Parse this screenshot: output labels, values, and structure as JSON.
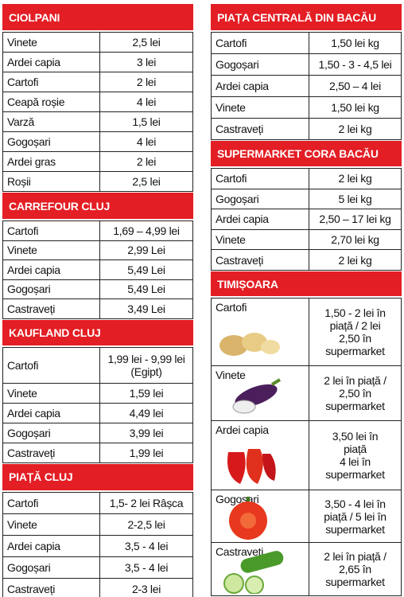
{
  "left": [
    {
      "title": "CIOLPANI",
      "rows": [
        [
          "Vinete",
          "2,5 lei"
        ],
        [
          "Ardei capia",
          "3 lei"
        ],
        [
          "Cartofi",
          "2 lei"
        ],
        [
          "Ceapă roșie",
          "4 lei"
        ],
        [
          "Varză",
          "1,5 lei"
        ],
        [
          "Gogoșari",
          "4 lei"
        ],
        [
          "Ardei gras",
          "2 lei"
        ],
        [
          "Roșii",
          "2,5 lei"
        ]
      ]
    },
    {
      "title": "CARREFOUR CLUJ",
      "rows": [
        [
          "Cartofi",
          "1,69 – 4,99 lei"
        ],
        [
          "Vinete",
          "2,99 Lei"
        ],
        [
          "Ardei capia",
          "5,49 Lei"
        ],
        [
          "Gogoșari",
          "5,49 Lei"
        ],
        [
          "Castraveți",
          "3,49 Lei"
        ]
      ]
    },
    {
      "title": "KAUFLAND CLUJ",
      "rows": [
        [
          "Cartofi",
          "1,99 lei - 9,99 lei (Egipt)"
        ],
        [
          "Vinete",
          "1,59 lei"
        ],
        [
          "Ardei capia",
          "4,49 lei"
        ],
        [
          "Gogoșari",
          "3,99 lei"
        ],
        [
          "Castraveți",
          "1,99 lei"
        ]
      ]
    },
    {
      "title": "PIAȚĂ CLUJ",
      "rows": [
        [
          "Cartofi",
          "1,5- 2 lei Râșca"
        ],
        [
          "Vinete",
          "2-2,5 lei"
        ],
        [
          "Ardei capia",
          "3,5 - 4 lei"
        ],
        [
          "Gogoșari",
          "3,5 - 4 lei"
        ],
        [
          "Castraveți",
          "2-3 lei"
        ]
      ]
    }
  ],
  "right": [
    {
      "title": "PIAȚA CENTRALĂ DIN BACĂU",
      "rows": [
        [
          "Cartofi",
          "1,50 lei kg"
        ],
        [
          "Gogoșari",
          "1,50 - 3 - 4,5 lei"
        ],
        [
          "Ardei capia",
          "2,50 – 4 lei"
        ],
        [
          "Vinete",
          "1,50 lei kg"
        ],
        [
          "Castraveți",
          "2 lei kg"
        ]
      ]
    },
    {
      "title": "SUPERMARKET CORA BACĂU",
      "rows": [
        [
          "Cartofi",
          "2 lei kg"
        ],
        [
          "Gogoșari",
          "5 lei kg"
        ],
        [
          "Ardei capia",
          "2,50 – 17 lei kg"
        ],
        [
          "Vinete",
          "2,70 lei kg"
        ],
        [
          "Castraveți",
          "2 lei kg"
        ]
      ]
    },
    {
      "title": "TIMIȘOARA",
      "rows": [
        [
          "Cartofi",
          [
            "1,50 - 2 lei în",
            "piață / 2 lei",
            "2,50 în",
            "supermarket"
          ]
        ],
        [
          "Vinete",
          [
            "2 lei în piață /",
            "2,50 în",
            "supermarket"
          ]
        ],
        [
          "Ardei capia",
          [
            "3,50 lei în",
            "piață",
            "4 lei în",
            "supermarket"
          ]
        ],
        [
          "Gogoșari",
          [
            "3,50 - 4 lei în",
            "piață / 5 lei în",
            "supermarket"
          ]
        ],
        [
          "Castraveți",
          [
            "2 lei în piață /",
            "2,65 în",
            "supermarket"
          ]
        ]
      ]
    }
  ]
}
